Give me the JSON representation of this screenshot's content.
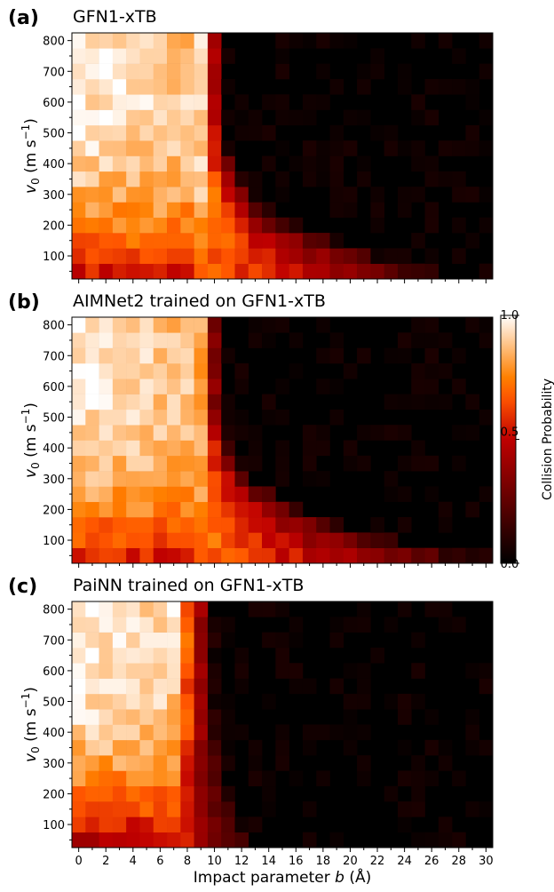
{
  "chart_data": {
    "type": "heatmap",
    "colormap": "gist_heat",
    "xlabel": "Impact parameter b (Å)",
    "xlabel_parts": [
      "Impact parameter ",
      "b",
      " (Å)"
    ],
    "ylabel_parts": [
      "v",
      "0",
      " (m s",
      "−1",
      ")"
    ],
    "x_range": [
      -0.5,
      30.5
    ],
    "y_range": [
      25,
      825
    ],
    "x_cell_width": 1,
    "y_cell_height": 50,
    "x_ticks": [
      0,
      2,
      4,
      6,
      8,
      10,
      12,
      14,
      16,
      18,
      20,
      22,
      24,
      26,
      28,
      30
    ],
    "x_tick_labels": [
      "0",
      "2",
      "4",
      "6",
      "8",
      "10",
      "12",
      "14",
      "16",
      "18",
      "20",
      "22",
      "24",
      "26",
      "28",
      "30"
    ],
    "y_ticks": [
      100,
      200,
      300,
      400,
      500,
      600,
      700,
      800
    ],
    "y_tick_labels": [
      "100",
      "200",
      "300",
      "400",
      "500",
      "600",
      "700",
      "800"
    ],
    "colorbar": {
      "label": "Collision Probability",
      "range": [
        0.0,
        1.0
      ],
      "ticks": [
        0.0,
        0.5,
        1.0
      ],
      "tick_labels": [
        "0.0",
        "0.5",
        "1.0"
      ]
    },
    "panels": [
      {
        "letter": "(a)",
        "title": "GFN1-xTB",
        "model": {
          "full_width": 8.7,
          "cutoff_low": 29,
          "cutoff_high": 10.8,
          "curve_a": 165,
          "curve_k": 4.4,
          "floor": 22,
          "low_v_drop": 0.42,
          "high_v_drop": 0.1
        }
      },
      {
        "letter": "(b)",
        "title": "AIMNet2 trained on GFN1-xTB",
        "model": {
          "full_width": 8.4,
          "cutoff_low": 31,
          "cutoff_high": 10.6,
          "curve_a": 175,
          "curve_k": 4.0,
          "floor": 20,
          "low_v_drop": 0.4,
          "high_v_drop": 0.12
        }
      },
      {
        "letter": "(c)",
        "title": "PaiNN trained on GFN1-xTB",
        "model": {
          "full_width": 6.4,
          "cutoff_low": 13.4,
          "cutoff_high": 10.2,
          "curve_a": 0,
          "curve_k": 1,
          "floor": 0,
          "low_v_drop": 0.5,
          "high_v_drop": 0.05,
          "hard_cut": 13.5
        }
      }
    ]
  }
}
